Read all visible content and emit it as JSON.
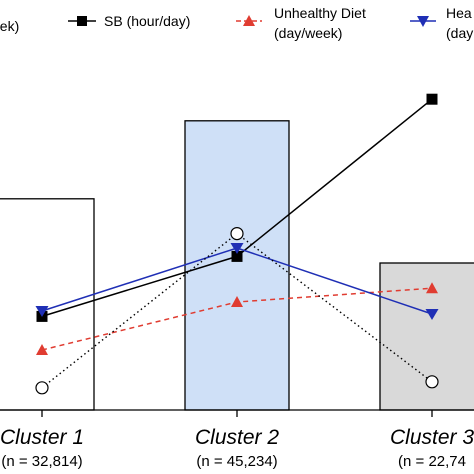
{
  "chart_data": {
    "type": "bar",
    "categories": [
      "Cluster 1",
      "Cluster 2",
      "Cluster 3"
    ],
    "sample_sizes": [
      "(n = 32,814)",
      "(n = 45,234)",
      "(n = 22,74"
    ],
    "bars": {
      "values": [
        35.2,
        48.2,
        24.5
      ],
      "colors": [
        "#ffffff",
        "#cfe0f7",
        "#d9d9d9"
      ],
      "stroke": "#000000"
    },
    "series": [
      {
        "name": "SB (hour/day)",
        "values": [
          15.6,
          25.6,
          51.8
        ],
        "color": "#000000",
        "marker": "square-filled",
        "line": "solid"
      },
      {
        "name": "Unhealthy Diet\n(day/week)",
        "values": [
          10.0,
          18.0,
          20.3
        ],
        "color": "#e03c31",
        "marker": "triangle-up",
        "line": "dashed"
      },
      {
        "name": "Hea",
        "name_line2": "(day",
        "values": [
          16.5,
          27.0,
          16.0
        ],
        "color": "#1f2fb5",
        "marker": "triangle-down",
        "line": "solid"
      },
      {
        "name": "eek)",
        "values": [
          3.7,
          29.4,
          4.7
        ],
        "color": "#000000",
        "marker": "circle-open",
        "line": "dotted"
      }
    ],
    "axes": {
      "ylim": [
        0,
        60
      ],
      "xlabel": "",
      "ylabel": ""
    },
    "legend": {
      "position": "top"
    },
    "grid": false
  }
}
